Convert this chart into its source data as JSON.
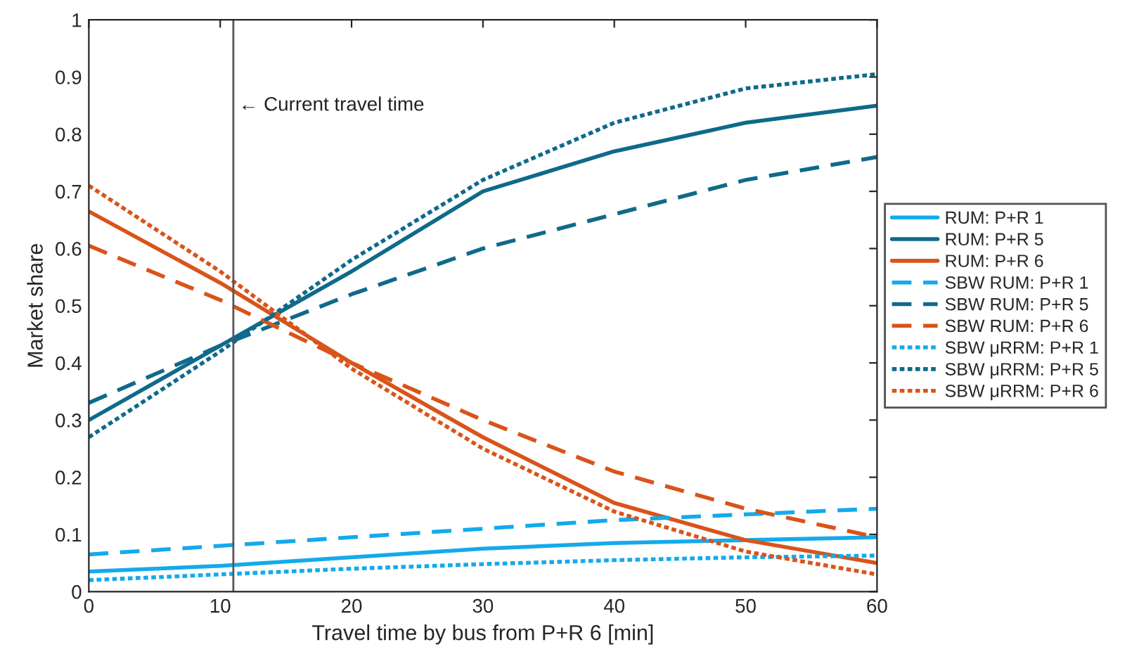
{
  "chart_data": {
    "type": "line",
    "xlabel": "Travel time by bus from P+R 6 [min]",
    "ylabel": "Market share",
    "x": [
      0,
      10,
      20,
      30,
      40,
      50,
      60
    ],
    "series": [
      {
        "name": "RUM: P+R 1",
        "color": "#14aaeb",
        "line_style": "solid",
        "values": [
          0.035,
          0.045,
          0.06,
          0.075,
          0.085,
          0.09,
          0.095
        ]
      },
      {
        "name": "RUM: P+R 5",
        "color": "#0f6a8a",
        "line_style": "solid",
        "values": [
          0.3,
          0.43,
          0.56,
          0.7,
          0.77,
          0.82,
          0.85
        ]
      },
      {
        "name": "RUM: P+R 6",
        "color": "#d9541a",
        "line_style": "solid",
        "values": [
          0.665,
          0.54,
          0.4,
          0.27,
          0.155,
          0.09,
          0.05
        ]
      },
      {
        "name": "SBW RUM: P+R 1",
        "color": "#14aaeb",
        "line_style": "dashed",
        "values": [
          0.065,
          0.08,
          0.095,
          0.11,
          0.125,
          0.135,
          0.145
        ]
      },
      {
        "name": "SBW RUM: P+R 5",
        "color": "#0f6a8a",
        "line_style": "dashed",
        "values": [
          0.33,
          0.43,
          0.52,
          0.6,
          0.66,
          0.72,
          0.76
        ]
      },
      {
        "name": "SBW RUM: P+R 6",
        "color": "#d9541a",
        "line_style": "dashed",
        "values": [
          0.605,
          0.51,
          0.4,
          0.3,
          0.21,
          0.145,
          0.095
        ]
      },
      {
        "name": "SBW μRRM: P+R 1",
        "color": "#14aaeb",
        "line_style": "dotted",
        "values": [
          0.02,
          0.03,
          0.04,
          0.048,
          0.055,
          0.06,
          0.063
        ]
      },
      {
        "name": "SBW μRRM: P+R 5",
        "color": "#0f6a8a",
        "line_style": "dotted",
        "values": [
          0.27,
          0.42,
          0.58,
          0.72,
          0.82,
          0.88,
          0.905
        ]
      },
      {
        "name": "SBW μRRM: P+R 6",
        "color": "#d9541a",
        "line_style": "dotted",
        "values": [
          0.71,
          0.56,
          0.39,
          0.25,
          0.14,
          0.07,
          0.03
        ]
      }
    ],
    "ref_lines": [
      {
        "axis": "x",
        "value": 11,
        "label": "← Current travel time",
        "color": "#555555",
        "line_style": "solid"
      }
    ],
    "xlim": [
      0,
      60
    ],
    "ylim": [
      0,
      1
    ],
    "xticks": [
      0,
      10,
      20,
      30,
      40,
      50,
      60
    ],
    "yticks": [
      0,
      0.1,
      0.2,
      0.3,
      0.4,
      0.5,
      0.6,
      0.7,
      0.8,
      0.9,
      1
    ],
    "grid": false,
    "legend": "right",
    "marker": "none"
  }
}
